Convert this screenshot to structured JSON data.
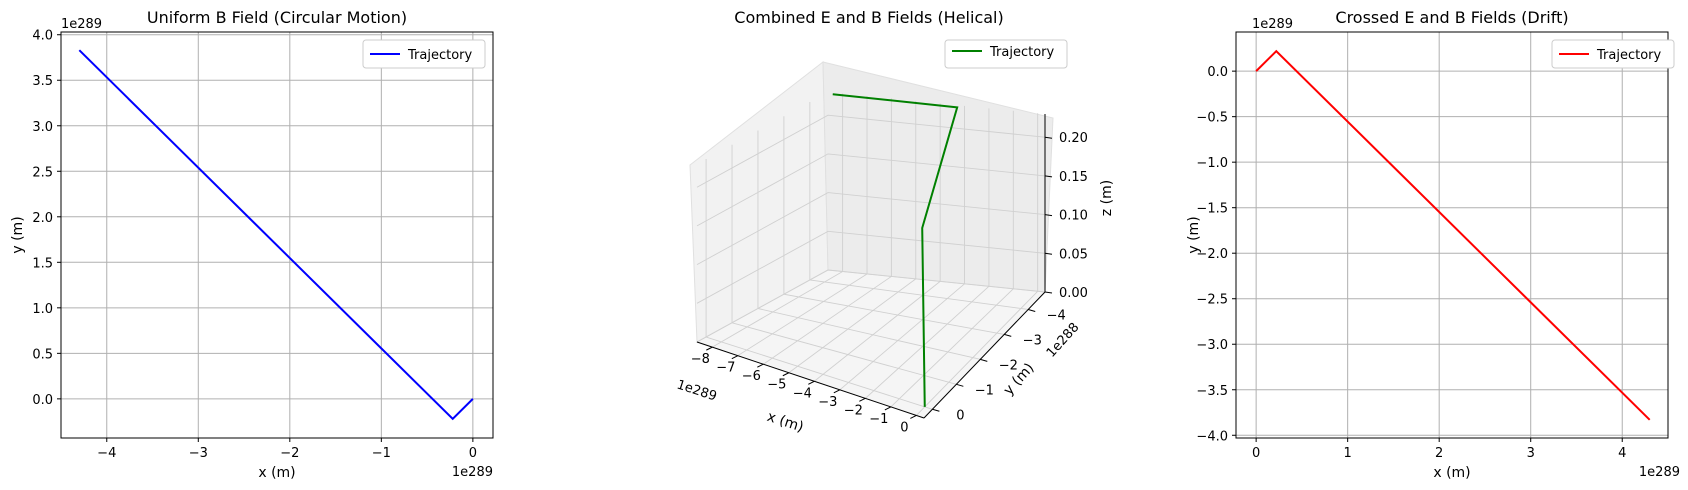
{
  "chart_data": [
    {
      "type": "line",
      "title": "Uniform B Field (Circular Motion)",
      "xlabel": "x (m)",
      "ylabel": "y (m)",
      "x_offset_label": "1e289",
      "y_offset_label": "1e289",
      "xticks": [
        "−4",
        "−3",
        "−2",
        "−1",
        "0"
      ],
      "yticks": [
        "0.0",
        "0.5",
        "1.0",
        "1.5",
        "2.0",
        "2.5",
        "3.0",
        "3.5",
        "4.0"
      ],
      "xlim": [
        -4.5,
        0.22
      ],
      "ylim": [
        -0.43,
        4.03
      ],
      "grid": true,
      "legend": "top-right",
      "series": [
        {
          "name": "Trajectory",
          "color": "#0000ff",
          "x": [
            0.0,
            -0.22,
            -4.3
          ],
          "y": [
            0.0,
            -0.22,
            3.83
          ]
        }
      ]
    },
    {
      "type": "line",
      "subtype": "3d",
      "title": "Combined E and B Fields (Helical)",
      "xlabel": "x (m)",
      "ylabel": "y (m)",
      "zlabel": "z (m)",
      "x_offset_label": "1e289",
      "y_offset_label": "1e288",
      "xticks": [
        "−8",
        "−7",
        "−6",
        "−5",
        "−4",
        "−3",
        "−2",
        "−1",
        "0"
      ],
      "yticks": [
        "−4",
        "−3",
        "−2",
        "−1",
        "0"
      ],
      "zticks": [
        "0.00",
        "0.05",
        "0.10",
        "0.15",
        "0.20"
      ],
      "xlim": [
        -8.6,
        0.3
      ],
      "ylim": [
        -4.7,
        0.35
      ],
      "zlim": [
        0.0,
        0.23
      ],
      "grid": true,
      "legend": "top-right",
      "series": [
        {
          "name": "Trajectory",
          "color": "#008000",
          "x": [
            0.0,
            -0.1,
            -3.2,
            -8.3
          ],
          "y": [
            0.0,
            0.0,
            -4.6,
            -4.6
          ],
          "z": [
            0.0,
            0.23,
            0.23,
            0.23
          ]
        }
      ]
    },
    {
      "type": "line",
      "title": "Crossed E and B Fields (Drift)",
      "xlabel": "x (m)",
      "ylabel": "y (m)",
      "x_offset_label": "1e289",
      "y_offset_label": "1e289",
      "xticks": [
        "0",
        "1",
        "2",
        "3",
        "4"
      ],
      "yticks": [
        "−4.0",
        "−3.5",
        "−3.0",
        "−2.5",
        "−2.0",
        "−1.5",
        "−1.0",
        "−0.5",
        "0.0"
      ],
      "xlim": [
        -0.22,
        4.5
      ],
      "ylim": [
        -4.03,
        0.43
      ],
      "grid": true,
      "legend": "top-right",
      "series": [
        {
          "name": "Trajectory",
          "color": "#ff0000",
          "x": [
            0.0,
            0.22,
            4.3
          ],
          "y": [
            0.0,
            0.22,
            -3.83
          ]
        }
      ]
    }
  ]
}
